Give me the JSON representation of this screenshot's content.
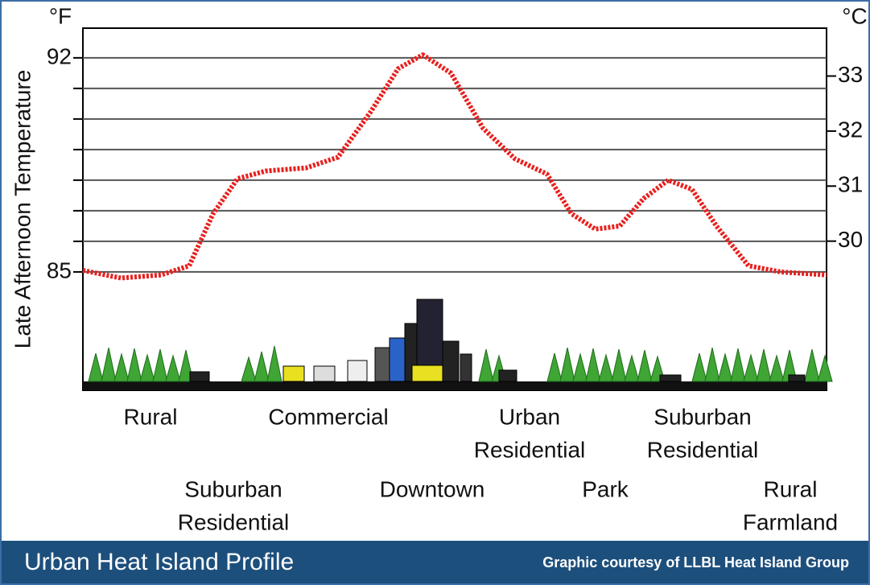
{
  "chart_data": {
    "type": "line",
    "y_label": "Late Afternoon Temperature",
    "y_unit": "°F",
    "y2_unit": "°C",
    "ylim": [
      81.13,
      92.97
    ],
    "yticks": [
      92,
      85
    ],
    "minor_yticks": [
      86,
      87,
      88,
      89,
      90,
      91
    ],
    "y2lim": [
      27.29,
      33.87
    ],
    "y2ticks": [
      33,
      32,
      31,
      30
    ],
    "xlim": [
      0,
      100
    ],
    "grid": true,
    "series": [
      {
        "color": "#e8201e",
        "x": [
          0,
          5.1,
          10.5,
          14.3,
          17.5,
          20.8,
          24.6,
          30,
          34.3,
          38.6,
          42.4,
          45.7,
          49.5,
          53.8,
          58.1,
          62.4,
          65.7,
          68.9,
          72.2,
          75.4,
          78.7,
          81.9,
          85.2,
          89.5,
          93.8,
          100
        ],
        "values": [
          85.05,
          84.8,
          84.9,
          85.2,
          86.9,
          88.05,
          88.3,
          88.4,
          88.75,
          90.2,
          91.65,
          92.1,
          91.5,
          89.7,
          88.7,
          88.2,
          86.9,
          86.4,
          86.5,
          87.4,
          88.0,
          87.7,
          86.5,
          85.2,
          85.0,
          84.9
        ]
      }
    ],
    "regions": [
      {
        "lines": [
          "Rural"
        ]
      },
      {
        "lines": [
          "Suburban",
          "Residential"
        ]
      },
      {
        "lines": [
          "Commercial"
        ]
      },
      {
        "lines": [
          "Downtown"
        ]
      },
      {
        "lines": [
          "Urban",
          "Residential"
        ]
      },
      {
        "lines": [
          "Park"
        ]
      },
      {
        "lines": [
          "Suburban",
          "Residential"
        ]
      },
      {
        "lines": [
          "Rural",
          "Farmland"
        ]
      }
    ],
    "footer_title": "Urban Heat Island Profile",
    "credit": "Graphic courtesy of LLBL Heat Island Group"
  }
}
